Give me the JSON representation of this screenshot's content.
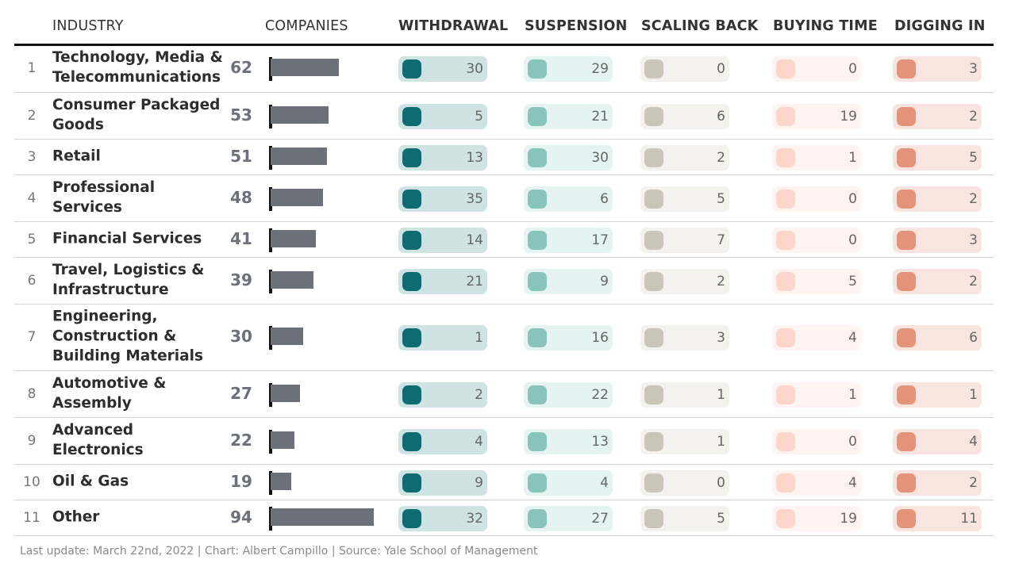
{
  "columns": {
    "industry": "INDUSTRY",
    "companies": "COMPANIES",
    "withdrawal": "WITHDRAWAL",
    "suspension": "SUSPENSION",
    "scaling_back": "SCALING BACK",
    "buying_time": "BUYING TIME",
    "digging_in": "DIGGING IN"
  },
  "colors": {
    "withdrawal": {
      "dot": "#0e6c71",
      "bg": "#cfe3e5"
    },
    "suspension": {
      "dot": "#86c4bc",
      "bg": "#e5f3f1"
    },
    "scaling_back": {
      "dot": "#cac4b9",
      "bg": "#f3f2ef"
    },
    "buying_time": {
      "dot": "#fdd5ca",
      "bg": "#fff4f1"
    },
    "digging_in": {
      "dot": "#e4937a",
      "bg": "#f9e5df"
    },
    "companies_bar": "#6b7079"
  },
  "chart_data": {
    "type": "table",
    "columns": [
      "INDUSTRY",
      "COMPANIES",
      "WITHDRAWAL",
      "SUSPENSION",
      "SCALING BACK",
      "BUYING TIME",
      "DIGGING IN"
    ],
    "rows": [
      {
        "rank": "1",
        "industry": "Technology, Media & Telecommunications",
        "companies": 62,
        "withdrawal": 30,
        "suspension": 29,
        "scaling_back": 0,
        "buying_time": 0,
        "digging_in": 3
      },
      {
        "rank": "2",
        "industry": "Consumer Packaged Goods",
        "companies": 53,
        "withdrawal": 5,
        "suspension": 21,
        "scaling_back": 6,
        "buying_time": 19,
        "digging_in": 2
      },
      {
        "rank": "3",
        "industry": "Retail",
        "companies": 51,
        "withdrawal": 13,
        "suspension": 30,
        "scaling_back": 2,
        "buying_time": 1,
        "digging_in": 5
      },
      {
        "rank": "4",
        "industry": "Professional Services",
        "companies": 48,
        "withdrawal": 35,
        "suspension": 6,
        "scaling_back": 5,
        "buying_time": 0,
        "digging_in": 2
      },
      {
        "rank": "5",
        "industry": "Financial Services",
        "companies": 41,
        "withdrawal": 14,
        "suspension": 17,
        "scaling_back": 7,
        "buying_time": 0,
        "digging_in": 3
      },
      {
        "rank": "6",
        "industry": "Travel, Logistics & Infrastructure",
        "companies": 39,
        "withdrawal": 21,
        "suspension": 9,
        "scaling_back": 2,
        "buying_time": 5,
        "digging_in": 2
      },
      {
        "rank": "7",
        "industry": "Engineering, Construction & Building Materials",
        "companies": 30,
        "withdrawal": 1,
        "suspension": 16,
        "scaling_back": 3,
        "buying_time": 4,
        "digging_in": 6
      },
      {
        "rank": "8",
        "industry": "Automotive & Assembly",
        "companies": 27,
        "withdrawal": 2,
        "suspension": 22,
        "scaling_back": 1,
        "buying_time": 1,
        "digging_in": 1
      },
      {
        "rank": "9",
        "industry": "Advanced Electronics",
        "companies": 22,
        "withdrawal": 4,
        "suspension": 13,
        "scaling_back": 1,
        "buying_time": 0,
        "digging_in": 4
      },
      {
        "rank": "10",
        "industry": "Oil & Gas",
        "companies": 19,
        "withdrawal": 9,
        "suspension": 4,
        "scaling_back": 0,
        "buying_time": 4,
        "digging_in": 2
      },
      {
        "rank": "11",
        "industry": "Other",
        "companies": 94,
        "withdrawal": 32,
        "suspension": 27,
        "scaling_back": 5,
        "buying_time": 19,
        "digging_in": 11
      }
    ]
  },
  "footer": "Last update: March 22nd, 2022 | Chart: Albert Campillo | Source: Yale School of Management"
}
